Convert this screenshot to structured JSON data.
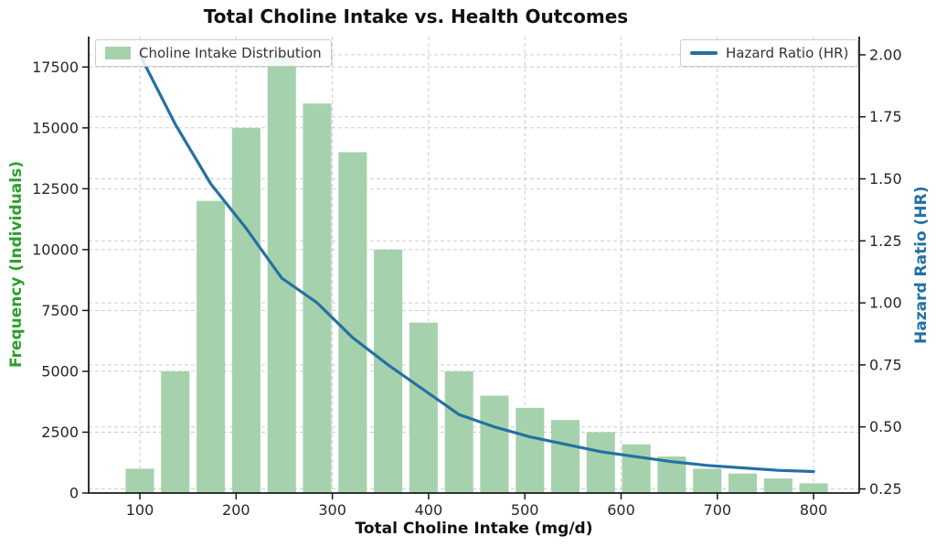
{
  "chart_data": {
    "type": "combo",
    "title": "Total Choline Intake vs. Health Outcomes",
    "xlabel": "Total Choline Intake (mg/d)",
    "ylabel_left": "Frequency (Individuals)",
    "ylabel_right": "Hazard Ratio (HR)",
    "x": [
      100,
      136.8,
      173.7,
      210.5,
      247.4,
      284.2,
      321.1,
      357.9,
      394.7,
      431.6,
      468.4,
      505.3,
      542.1,
      578.9,
      615.8,
      652.6,
      689.5,
      726.3,
      763.2,
      800
    ],
    "series": [
      {
        "name": "Choline Intake Distribution",
        "type": "bar",
        "axis": "left",
        "values": [
          1000,
          5000,
          12000,
          15000,
          18000,
          16000,
          14000,
          10000,
          7000,
          5000,
          4000,
          3500,
          3000,
          2500,
          2000,
          1500,
          1000,
          800,
          600,
          400
        ]
      },
      {
        "name": "Hazard Ratio (HR)",
        "type": "line",
        "axis": "right",
        "values": [
          2.0,
          1.72,
          1.48,
          1.3,
          1.1,
          1.0,
          0.86,
          0.75,
          0.65,
          0.55,
          0.5,
          0.46,
          0.43,
          0.4,
          0.38,
          0.36,
          0.345,
          0.335,
          0.325,
          0.32
        ]
      }
    ],
    "bar_width_x": 29.5,
    "x_ticks": [
      100,
      200,
      300,
      400,
      500,
      600,
      700,
      800
    ],
    "left_ticks": [
      0,
      2500,
      5000,
      7500,
      10000,
      12500,
      15000,
      17500
    ],
    "right_ticks": [
      0.25,
      0.5,
      0.75,
      1.0,
      1.25,
      1.5,
      1.75,
      2.0
    ],
    "x_lim": [
      46.8,
      847.4
    ],
    "left_ylim": [
      0,
      18750
    ],
    "right_ylim": [
      0.2335,
      2.0735
    ],
    "grid": true,
    "legend_positions": [
      "upper left",
      "upper right"
    ]
  },
  "colors": {
    "bar_fill": "#a5d2ac",
    "line": "#2471a3",
    "left_label": "#2ca02c",
    "right_label": "#2471a3",
    "tick_text": "#262626",
    "grid": "#c9c9c9",
    "spine": "#1a1a1a"
  }
}
